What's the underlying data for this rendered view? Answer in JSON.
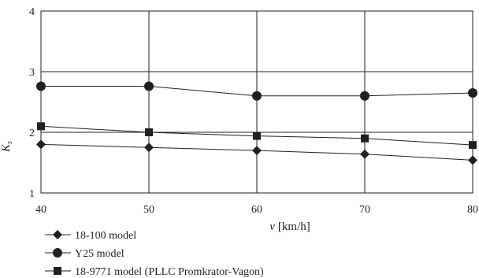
{
  "chart_data": {
    "type": "line",
    "x": [
      40,
      50,
      60,
      70,
      80
    ],
    "xlim": [
      40,
      80
    ],
    "ylim": [
      1,
      4
    ],
    "xticks": [
      "40",
      "50",
      "60",
      "70",
      "80"
    ],
    "yticks": [
      "1",
      "2",
      "3",
      "4"
    ],
    "xlabel_var": "v",
    "xlabel_unit": "[km/h]",
    "ylabel_var": "K",
    "ylabel_sub": "s",
    "grid": true,
    "legend_position": "bottom-left",
    "series": [
      {
        "name": "18-100 model",
        "marker": "diamond",
        "values": [
          1.8,
          1.75,
          1.7,
          1.64,
          1.54
        ]
      },
      {
        "name": "Y25 model",
        "marker": "circle",
        "values": [
          2.76,
          2.76,
          2.6,
          2.6,
          2.65
        ]
      },
      {
        "name": "18-9771 model (PLLC Promkrator-Vagon)",
        "marker": "square",
        "values": [
          2.1,
          2.0,
          1.94,
          1.9,
          1.79
        ]
      }
    ],
    "colors": {
      "line": "#231f20",
      "grid": "#231f20"
    }
  }
}
